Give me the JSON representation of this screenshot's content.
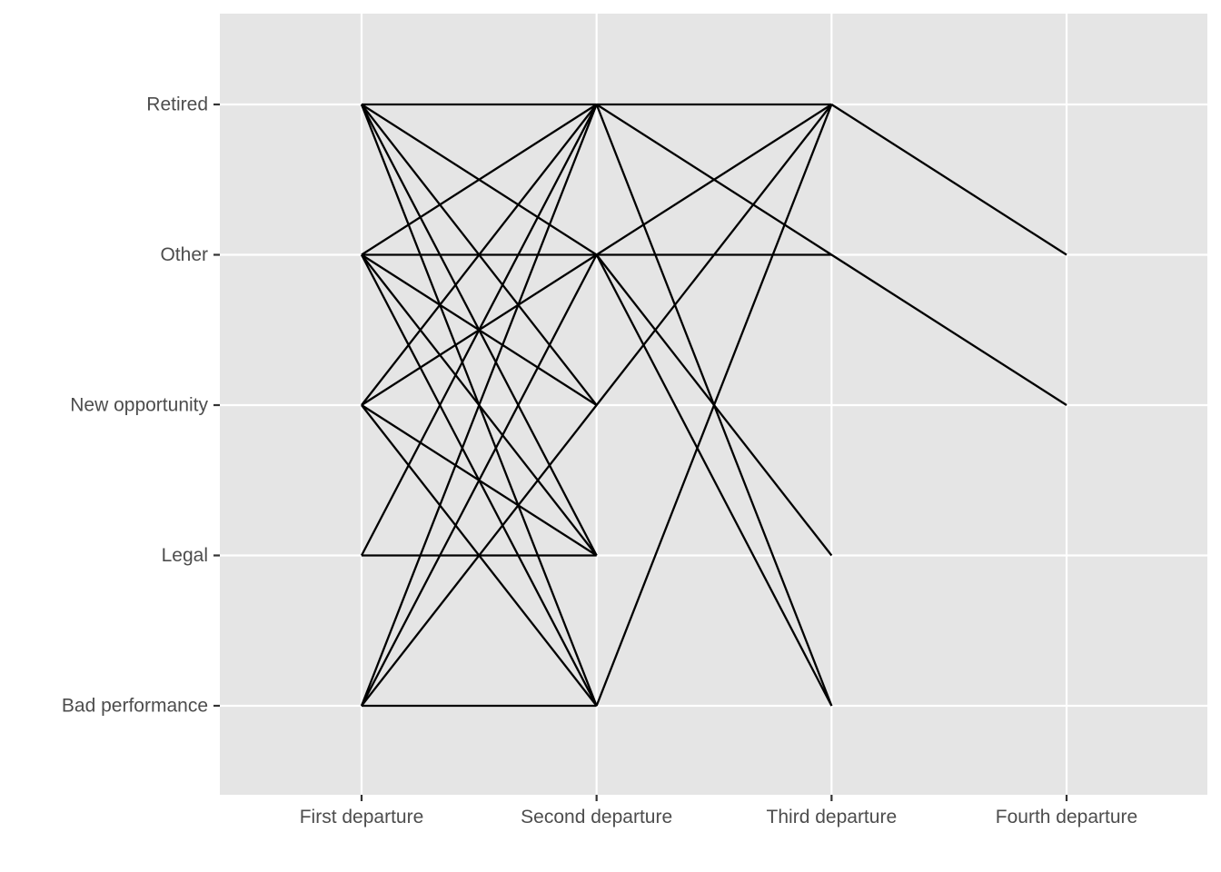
{
  "chart_data": {
    "type": "line",
    "title": "",
    "xlabel": "",
    "ylabel": "",
    "grid": true,
    "legend": "none",
    "colors": {
      "panel": "#e5e5e5",
      "grid": "#ffffff",
      "line": "#000000",
      "tick": "#333333",
      "label": "#4d4d4d"
    },
    "x_categories": [
      "First departure",
      "Second departure",
      "Third departure",
      "Fourth departure"
    ],
    "y_categories": [
      "Bad performance",
      "Legal",
      "New opportunity",
      "Other",
      "Retired"
    ],
    "segments": [
      {
        "from": [
          0,
          "Retired"
        ],
        "to": [
          1,
          "Retired"
        ]
      },
      {
        "from": [
          0,
          "Retired"
        ],
        "to": [
          1,
          "Other"
        ]
      },
      {
        "from": [
          0,
          "Retired"
        ],
        "to": [
          1,
          "New opportunity"
        ]
      },
      {
        "from": [
          0,
          "Retired"
        ],
        "to": [
          1,
          "Legal"
        ]
      },
      {
        "from": [
          0,
          "Retired"
        ],
        "to": [
          1,
          "Bad performance"
        ]
      },
      {
        "from": [
          0,
          "Other"
        ],
        "to": [
          1,
          "Retired"
        ]
      },
      {
        "from": [
          0,
          "Other"
        ],
        "to": [
          1,
          "Other"
        ]
      },
      {
        "from": [
          0,
          "Other"
        ],
        "to": [
          1,
          "New opportunity"
        ]
      },
      {
        "from": [
          0,
          "Other"
        ],
        "to": [
          1,
          "Legal"
        ]
      },
      {
        "from": [
          0,
          "Other"
        ],
        "to": [
          1,
          "Bad performance"
        ]
      },
      {
        "from": [
          0,
          "New opportunity"
        ],
        "to": [
          1,
          "Retired"
        ]
      },
      {
        "from": [
          0,
          "New opportunity"
        ],
        "to": [
          1,
          "Other"
        ]
      },
      {
        "from": [
          0,
          "New opportunity"
        ],
        "to": [
          1,
          "Legal"
        ]
      },
      {
        "from": [
          0,
          "New opportunity"
        ],
        "to": [
          1,
          "Bad performance"
        ]
      },
      {
        "from": [
          0,
          "Legal"
        ],
        "to": [
          1,
          "Retired"
        ]
      },
      {
        "from": [
          0,
          "Legal"
        ],
        "to": [
          1,
          "Legal"
        ]
      },
      {
        "from": [
          0,
          "Bad performance"
        ],
        "to": [
          1,
          "Retired"
        ]
      },
      {
        "from": [
          0,
          "Bad performance"
        ],
        "to": [
          1,
          "Other"
        ]
      },
      {
        "from": [
          0,
          "Bad performance"
        ],
        "to": [
          1,
          "New opportunity"
        ]
      },
      {
        "from": [
          0,
          "Bad performance"
        ],
        "to": [
          1,
          "Bad performance"
        ]
      },
      {
        "from": [
          1,
          "Retired"
        ],
        "to": [
          2,
          "Retired"
        ]
      },
      {
        "from": [
          1,
          "Retired"
        ],
        "to": [
          2,
          "Other"
        ]
      },
      {
        "from": [
          1,
          "Retired"
        ],
        "to": [
          2,
          "Bad performance"
        ]
      },
      {
        "from": [
          1,
          "Other"
        ],
        "to": [
          2,
          "Retired"
        ]
      },
      {
        "from": [
          1,
          "Other"
        ],
        "to": [
          2,
          "Other"
        ]
      },
      {
        "from": [
          1,
          "Other"
        ],
        "to": [
          2,
          "Legal"
        ]
      },
      {
        "from": [
          1,
          "Other"
        ],
        "to": [
          2,
          "Bad performance"
        ]
      },
      {
        "from": [
          1,
          "New opportunity"
        ],
        "to": [
          2,
          "Retired"
        ]
      },
      {
        "from": [
          1,
          "Bad performance"
        ],
        "to": [
          2,
          "Retired"
        ]
      },
      {
        "from": [
          2,
          "Retired"
        ],
        "to": [
          3,
          "Other"
        ]
      },
      {
        "from": [
          2,
          "Other"
        ],
        "to": [
          3,
          "New opportunity"
        ]
      }
    ]
  }
}
